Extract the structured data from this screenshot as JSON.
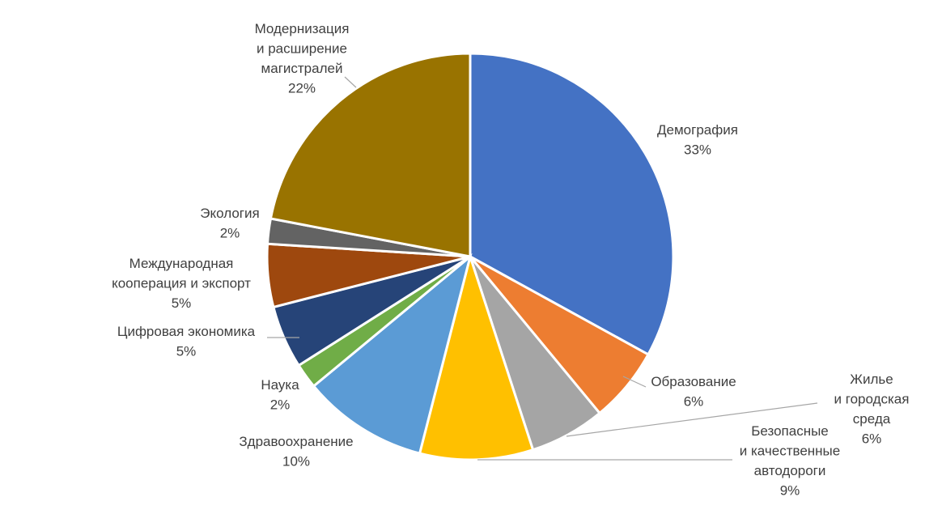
{
  "chart_data": {
    "type": "pie",
    "title": "",
    "slices": [
      {
        "name": "Демография",
        "value": 33,
        "label_lines": [
          "Демография",
          "33%"
        ],
        "color": "#4472C4"
      },
      {
        "name": "Образование",
        "value": 6,
        "label_lines": [
          "Образование",
          "6%"
        ],
        "color": "#ED7D31"
      },
      {
        "name": "Жилье и городская среда",
        "value": 6,
        "label_lines": [
          "Жилье",
          "и городская",
          "среда",
          "6%"
        ],
        "color": "#A5A5A5"
      },
      {
        "name": "Безопасные и качественные автодороги",
        "value": 9,
        "label_lines": [
          "Безопасные",
          "и качественные",
          "автодороги",
          "9%"
        ],
        "color": "#FFC000"
      },
      {
        "name": "Здравоохранение",
        "value": 10,
        "label_lines": [
          "Здравоохранение",
          "10%"
        ],
        "color": "#5B9BD5"
      },
      {
        "name": "Наука",
        "value": 2,
        "label_lines": [
          "Наука",
          "2%"
        ],
        "color": "#70AD47"
      },
      {
        "name": "Цифровая экономика",
        "value": 5,
        "label_lines": [
          "Цифровая экономика",
          "5%"
        ],
        "color": "#264478"
      },
      {
        "name": "Международная кооперация и экспорт",
        "value": 5,
        "label_lines": [
          "Международная",
          "кооперация и экспорт",
          "5%"
        ],
        "color": "#9E480E"
      },
      {
        "name": "Экология",
        "value": 2,
        "label_lines": [
          "Экология",
          "2%"
        ],
        "color": "#636363"
      },
      {
        "name": "Модернизация и расширение магистралей",
        "value": 22,
        "label_lines": [
          "Модернизация",
          "и расширение",
          "магистралей",
          "22%"
        ],
        "color": "#997300"
      }
    ]
  }
}
